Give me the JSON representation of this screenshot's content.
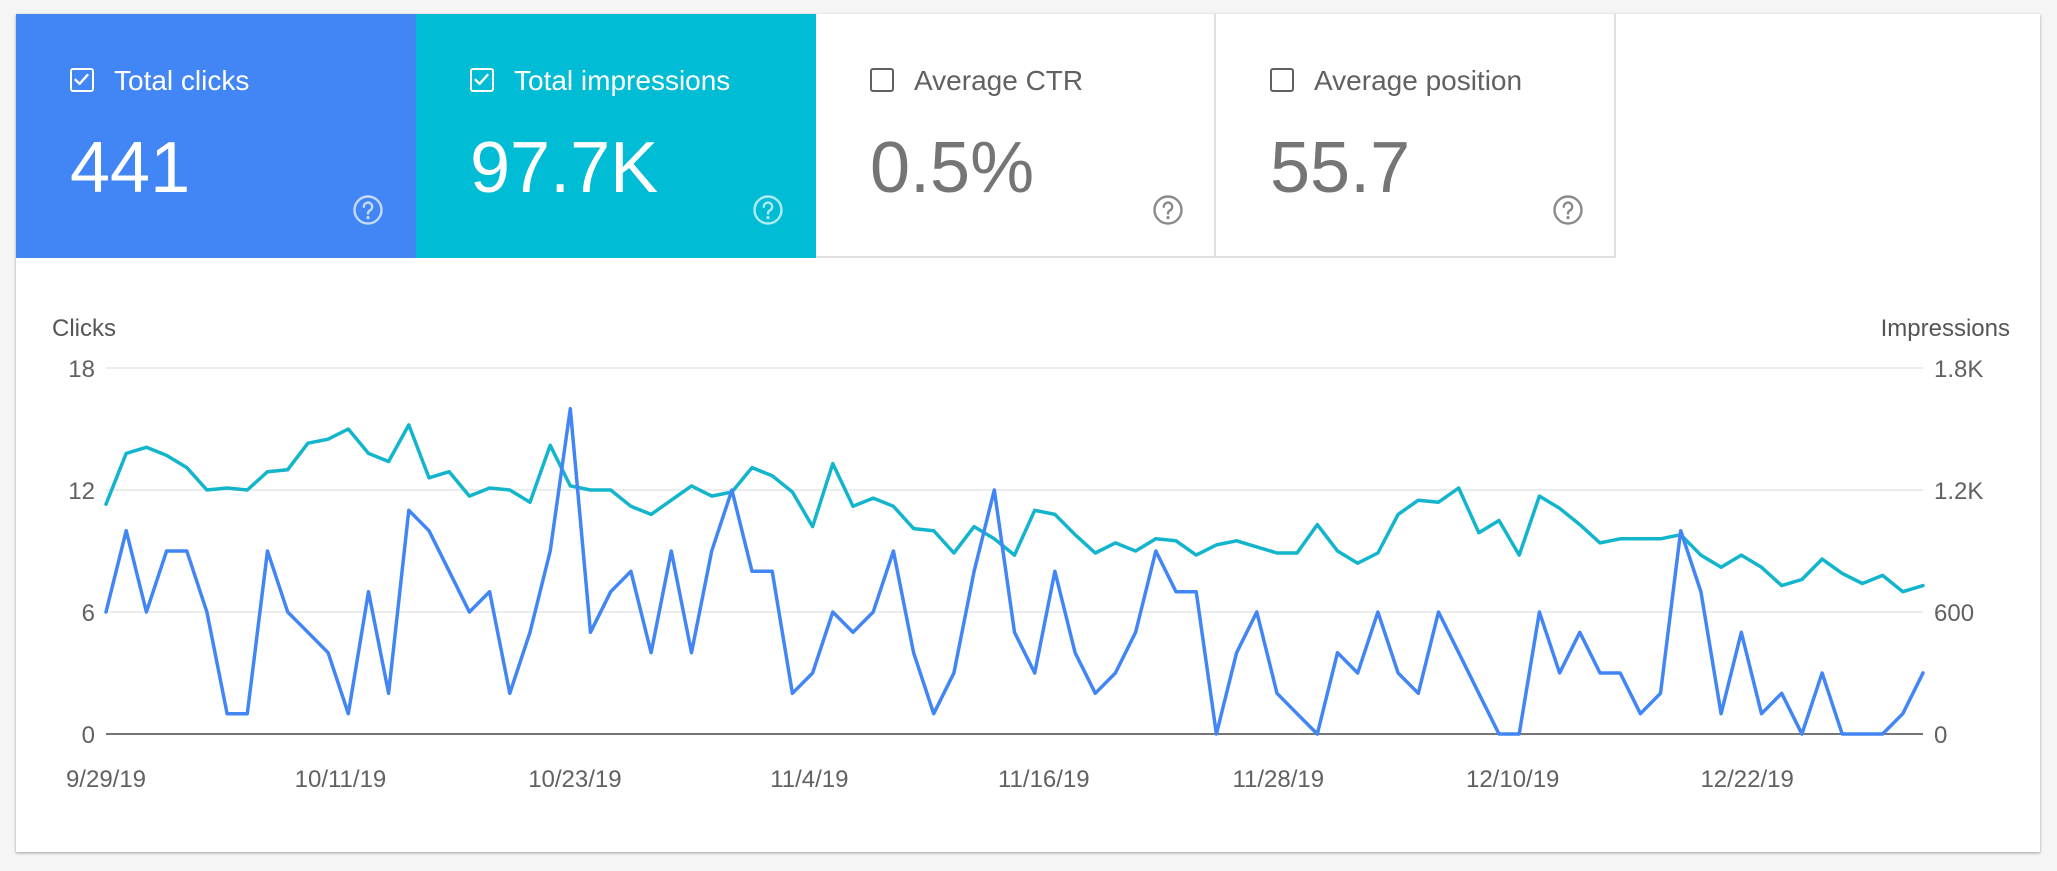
{
  "metrics": [
    {
      "label": "Total clicks",
      "value": "441",
      "checked": true,
      "color": "#4285f4"
    },
    {
      "label": "Total impressions",
      "value": "97.7K",
      "checked": true,
      "color": "#00bcd4"
    },
    {
      "label": "Average CTR",
      "value": "0.5%",
      "checked": false,
      "color": "#ffffff"
    },
    {
      "label": "Average position",
      "value": "55.7",
      "checked": false,
      "color": "#ffffff"
    }
  ],
  "icons": {
    "checkbox": "checkbox-icon",
    "help": "help-circle-icon"
  },
  "chart_data": {
    "type": "line",
    "x_start": "9/29/19",
    "x_end": "12/31/19",
    "x_tick_labels": [
      "9/29/19",
      "10/11/19",
      "10/23/19",
      "11/4/19",
      "11/16/19",
      "11/28/19",
      "12/10/19",
      "12/22/19"
    ],
    "grid": true,
    "left_axis": {
      "title": "Clicks",
      "range": [
        0,
        18
      ],
      "ticks": [
        0,
        6,
        12,
        18
      ],
      "tick_labels": [
        "0",
        "6",
        "12",
        "18"
      ]
    },
    "right_axis": {
      "title": "Impressions",
      "range": [
        0,
        1800
      ],
      "ticks": [
        0,
        600,
        1200,
        1800
      ],
      "tick_labels": [
        "0",
        "600",
        "1.2K",
        "1.8K"
      ]
    },
    "series": [
      {
        "name": "Impressions",
        "axis": "right",
        "color": "#12b5cb",
        "values": [
          1130,
          1380,
          1410,
          1370,
          1310,
          1200,
          1210,
          1200,
          1290,
          1300,
          1430,
          1450,
          1500,
          1380,
          1340,
          1520,
          1260,
          1290,
          1170,
          1210,
          1200,
          1140,
          1420,
          1220,
          1200,
          1200,
          1120,
          1080,
          1150,
          1220,
          1170,
          1190,
          1310,
          1270,
          1190,
          1020,
          1330,
          1120,
          1160,
          1120,
          1010,
          1000,
          890,
          1020,
          960,
          880,
          1100,
          1080,
          980,
          890,
          940,
          900,
          960,
          950,
          880,
          930,
          950,
          920,
          890,
          890,
          1030,
          900,
          840,
          890,
          1080,
          1150,
          1140,
          1210,
          990,
          1050,
          880,
          1170,
          1110,
          1030,
          940,
          960,
          960,
          960,
          980,
          880,
          820,
          880,
          820,
          730,
          760,
          860,
          790,
          740,
          780,
          700,
          730
        ]
      },
      {
        "name": "Clicks",
        "axis": "left",
        "color": "#4285f4",
        "values": [
          6,
          10,
          6,
          9,
          9,
          6,
          1,
          1,
          9,
          6,
          5,
          4,
          1,
          7,
          2,
          11,
          10,
          8,
          6,
          7,
          2,
          5,
          9,
          16,
          5,
          7,
          8,
          4,
          9,
          4,
          9,
          12,
          8,
          8,
          2,
          3,
          6,
          5,
          6,
          9,
          4,
          1,
          3,
          8,
          12,
          5,
          3,
          8,
          4,
          2,
          3,
          5,
          9,
          7,
          7,
          0,
          4,
          6,
          2,
          1,
          0,
          4,
          3,
          6,
          3,
          2,
          6,
          4,
          2,
          0,
          0,
          6,
          3,
          5,
          3,
          3,
          1,
          2,
          10,
          7,
          1,
          5,
          1,
          2,
          0,
          3,
          0,
          0,
          0,
          1,
          3
        ]
      }
    ]
  }
}
